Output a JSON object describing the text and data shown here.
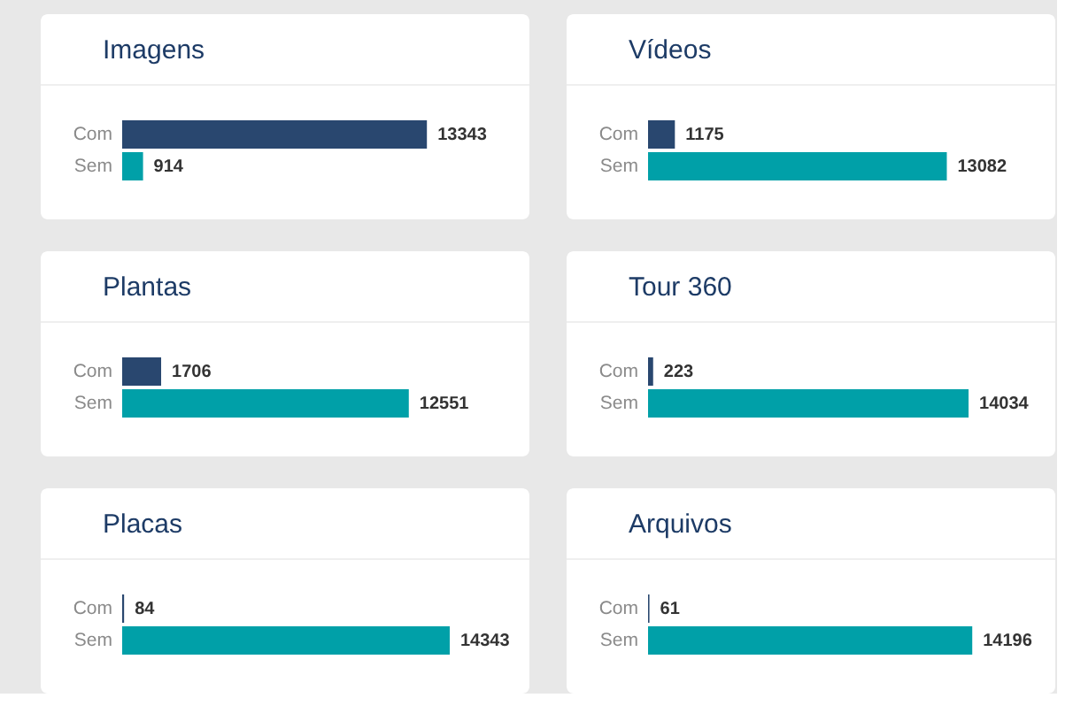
{
  "chart_data": [
    {
      "type": "bar",
      "orientation": "horizontal",
      "title": "Imagens",
      "categories": [
        "Com",
        "Sem"
      ],
      "values": [
        13343,
        914
      ],
      "colors": [
        "#29476f",
        "#00a0a8"
      ],
      "data_labels": true,
      "tick_labels": "y"
    },
    {
      "type": "bar",
      "orientation": "horizontal",
      "title": "Vídeos",
      "categories": [
        "Com",
        "Sem"
      ],
      "values": [
        1175,
        13082
      ],
      "colors": [
        "#29476f",
        "#00a0a8"
      ],
      "data_labels": true,
      "tick_labels": "y"
    },
    {
      "type": "bar",
      "orientation": "horizontal",
      "title": "Plantas",
      "categories": [
        "Com",
        "Sem"
      ],
      "values": [
        1706,
        12551
      ],
      "colors": [
        "#29476f",
        "#00a0a8"
      ],
      "data_labels": true,
      "tick_labels": "y"
    },
    {
      "type": "bar",
      "orientation": "horizontal",
      "title": "Tour 360",
      "categories": [
        "Com",
        "Sem"
      ],
      "values": [
        223,
        14034
      ],
      "colors": [
        "#29476f",
        "#00a0a8"
      ],
      "data_labels": true,
      "tick_labels": "y"
    },
    {
      "type": "bar",
      "orientation": "horizontal",
      "title": "Placas",
      "categories": [
        "Com",
        "Sem"
      ],
      "values": [
        84,
        14343
      ],
      "colors": [
        "#29476f",
        "#00a0a8"
      ],
      "data_labels": true,
      "tick_labels": "y"
    },
    {
      "type": "bar",
      "orientation": "horizontal",
      "title": "Arquivos",
      "categories": [
        "Com",
        "Sem"
      ],
      "values": [
        61,
        14196
      ],
      "colors": [
        "#29476f",
        "#00a0a8"
      ],
      "data_labels": true,
      "tick_labels": "y"
    }
  ]
}
